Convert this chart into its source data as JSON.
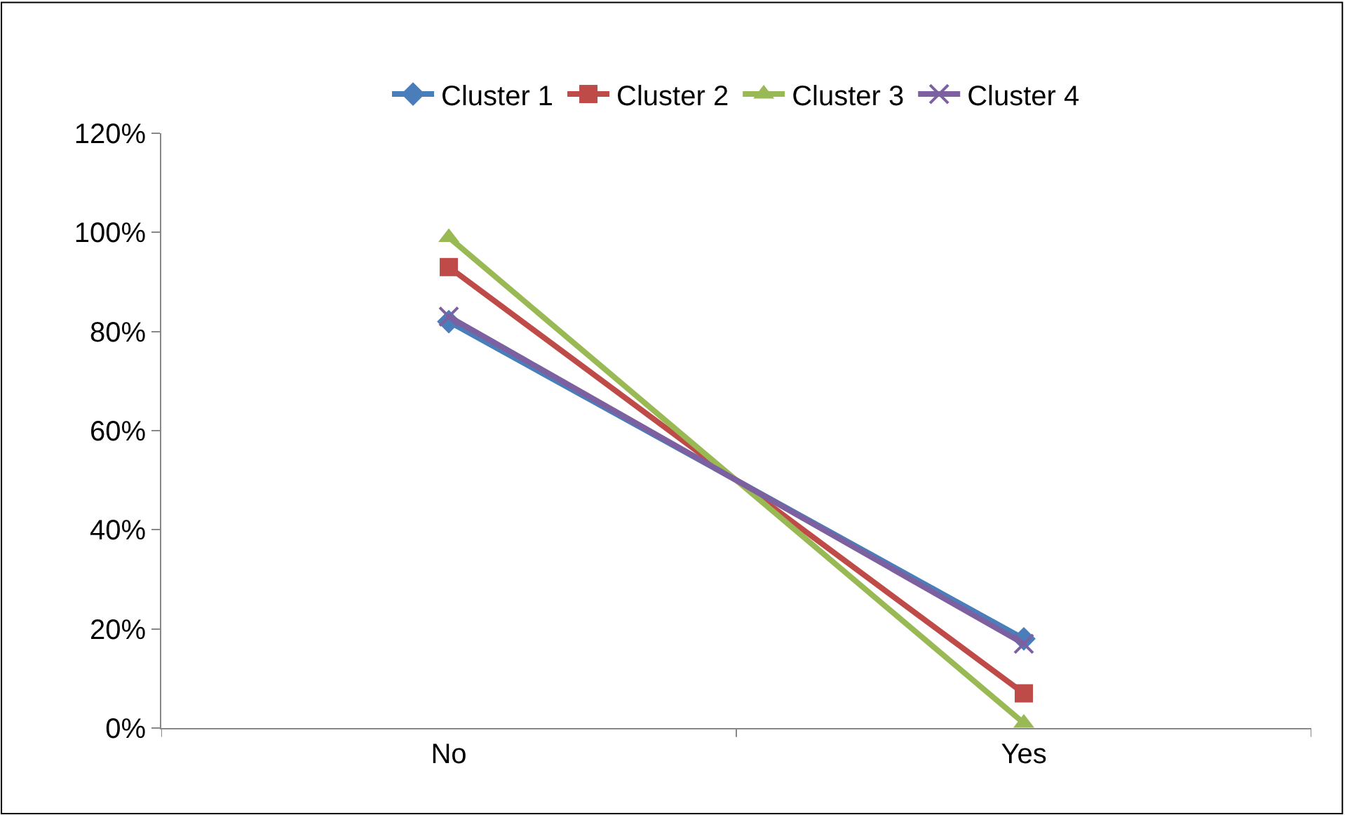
{
  "chart_data": {
    "type": "line",
    "categories": [
      "No",
      "Yes"
    ],
    "series": [
      {
        "name": "Cluster 1",
        "color": "#4a7ebb",
        "values": [
          82,
          18
        ],
        "marker": "diamond"
      },
      {
        "name": "Cluster 2",
        "color": "#be4b48",
        "values": [
          93,
          7
        ],
        "marker": "square"
      },
      {
        "name": "Cluster 3",
        "color": "#98b954",
        "values": [
          99,
          1
        ],
        "marker": "triangle"
      },
      {
        "name": "Cluster 4",
        "color": "#7d60a0",
        "values": [
          83,
          17
        ],
        "marker": "cross"
      }
    ],
    "ylim": [
      0,
      120
    ],
    "yticks": [
      {
        "value": 0,
        "label": "0%"
      },
      {
        "value": 20,
        "label": "20%"
      },
      {
        "value": 40,
        "label": "40%"
      },
      {
        "value": 60,
        "label": "60%"
      },
      {
        "value": 80,
        "label": "80%"
      },
      {
        "value": 100,
        "label": "100%"
      },
      {
        "value": 120,
        "label": "120%"
      }
    ],
    "legend": "top"
  }
}
